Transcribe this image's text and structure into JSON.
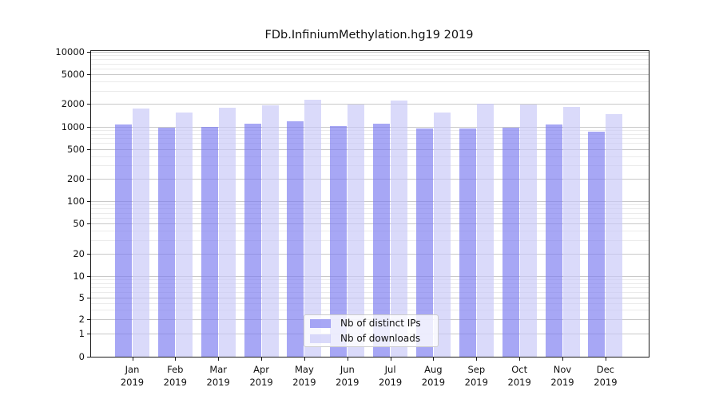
{
  "title": "FDb.InfiniumMethylation.hg19 2019",
  "colors": {
    "distinct_ips_fill": "rgba(121,121,240,0.66)",
    "downloads_fill": "rgba(199,199,248,0.66)",
    "grid_major": "#c9c9c9",
    "grid_minor": "#ebebeb",
    "axis_frame": "#1a1a1a",
    "background": "#ffffff"
  },
  "chart_data": {
    "type": "bar",
    "grouped": true,
    "yscale": "symlog",
    "title": "FDb.InfiniumMethylation.hg19 2019",
    "xlabel": "",
    "ylabel": "",
    "categories": [
      "Jan",
      "Feb",
      "Mar",
      "Apr",
      "May",
      "Jun",
      "Jul",
      "Aug",
      "Sep",
      "Oct",
      "Nov",
      "Dec"
    ],
    "year_label": "2019",
    "series": [
      {
        "name": "Nb of distinct IPs",
        "values": [
          1060,
          960,
          1000,
          1100,
          1180,
          1010,
          1100,
          930,
          940,
          970,
          1070,
          850
        ]
      },
      {
        "name": "Nb of downloads",
        "values": [
          1750,
          1550,
          1770,
          1900,
          2290,
          1990,
          2240,
          1550,
          2000,
          1950,
          1850,
          1480
        ]
      }
    ],
    "ylim": [
      0,
      10000
    ],
    "yticks": [
      0,
      1,
      2,
      5,
      10,
      20,
      50,
      100,
      200,
      500,
      1000,
      2000,
      5000,
      10000
    ],
    "yticks_minor": [
      3,
      4,
      6,
      7,
      8,
      9,
      30,
      40,
      60,
      70,
      80,
      90,
      300,
      400,
      600,
      700,
      800,
      900,
      3000,
      4000,
      6000,
      7000,
      8000,
      9000
    ],
    "grid": "on",
    "legend_position": "lower center"
  }
}
